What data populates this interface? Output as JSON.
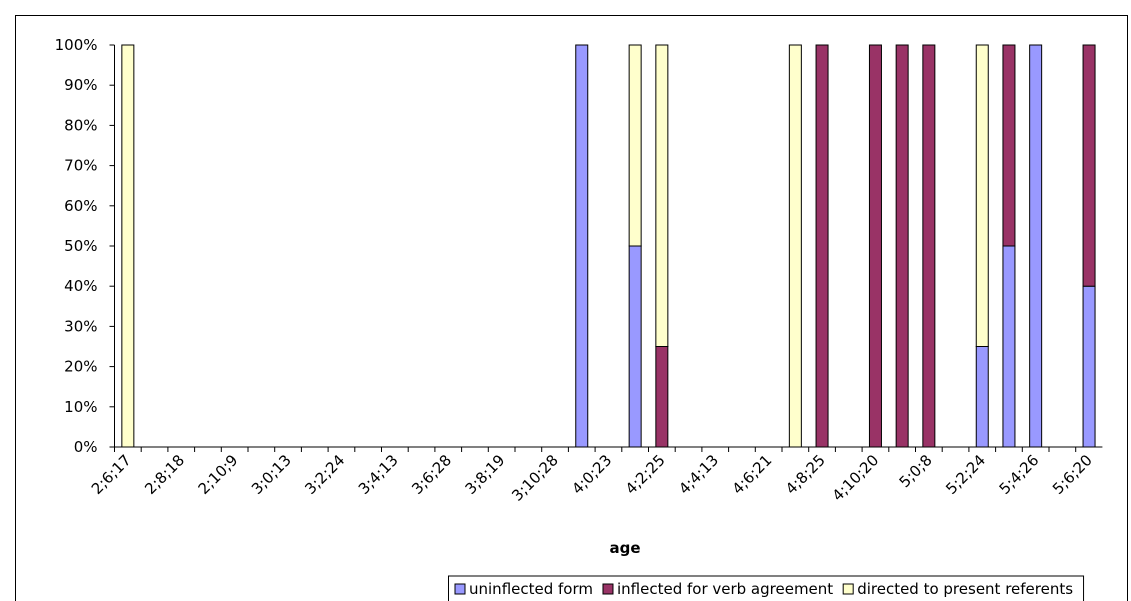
{
  "chart_data": {
    "type": "stacked-bar",
    "x_label": "age",
    "categories": [
      "2;6;17",
      null,
      "2;8;18",
      null,
      "2;10;9",
      null,
      "3;0;13",
      null,
      "3;2;24",
      null,
      "3;4;13",
      null,
      "3;6;28",
      null,
      "3;8;19",
      null,
      "3;10;28",
      null,
      "4;0;23",
      null,
      "4;2;25",
      null,
      "4;4;13",
      null,
      "4;6;21",
      null,
      "4;8;25",
      null,
      "4;10;20",
      null,
      "5;0;8",
      null,
      "5;2;24",
      null,
      "5;4;26",
      null,
      "5;6;20"
    ],
    "series": [
      {
        "name": "uninflected form",
        "color": "#9999ff",
        "values": [
          0,
          0,
          0,
          0,
          0,
          0,
          0,
          0,
          0,
          0,
          0,
          0,
          0,
          0,
          0,
          0,
          0,
          100,
          0,
          50,
          0,
          0,
          0,
          0,
          0,
          0,
          0,
          0,
          0,
          0,
          0,
          0,
          25,
          50,
          100,
          0,
          40
        ]
      },
      {
        "name": "inflected for verb agreement",
        "color": "#993366",
        "values": [
          0,
          0,
          0,
          0,
          0,
          0,
          0,
          0,
          0,
          0,
          0,
          0,
          0,
          0,
          0,
          0,
          0,
          0,
          0,
          0,
          25,
          0,
          0,
          0,
          0,
          0,
          100,
          0,
          100,
          100,
          100,
          0,
          0,
          50,
          0,
          0,
          60
        ]
      },
      {
        "name": "directed to present referents",
        "color": "#ffffcc",
        "values": [
          100,
          0,
          0,
          0,
          0,
          0,
          0,
          0,
          0,
          0,
          0,
          0,
          0,
          0,
          0,
          0,
          0,
          0,
          0,
          50,
          75,
          0,
          0,
          0,
          0,
          100,
          0,
          0,
          0,
          0,
          0,
          0,
          75,
          0,
          0,
          0,
          0
        ]
      }
    ],
    "ylim": [
      0,
      100
    ],
    "yticks": [
      {
        "value": 0,
        "label": "0%"
      },
      {
        "value": 10,
        "label": "10%"
      },
      {
        "value": 20,
        "label": "20%"
      },
      {
        "value": 30,
        "label": "30%"
      },
      {
        "value": 40,
        "label": "40%"
      },
      {
        "value": 50,
        "label": "50%"
      },
      {
        "value": 60,
        "label": "60%"
      },
      {
        "value": 70,
        "label": "70%"
      },
      {
        "value": 80,
        "label": "80%"
      },
      {
        "value": 90,
        "label": "90%"
      },
      {
        "value": 100,
        "label": "100%"
      }
    ],
    "legend": "bottom"
  }
}
